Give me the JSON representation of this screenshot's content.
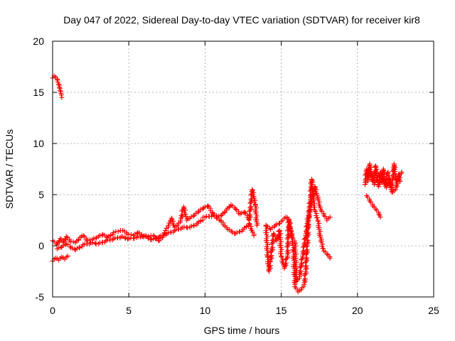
{
  "chart_data": {
    "type": "scatter",
    "title": "Day 047 of 2022, Sidereal Day-to-day VTEC variation (SDTVAR) for receiver kir8",
    "xlabel": "GPS time / hours",
    "ylabel": "SDTVAR / TECUs",
    "xlim": [
      0,
      25
    ],
    "ylim": [
      -5,
      20
    ],
    "xticks": [
      0,
      5,
      10,
      15,
      20,
      25
    ],
    "yticks": [
      -5,
      0,
      5,
      10,
      15,
      20
    ],
    "grid": true,
    "marker": "+",
    "series": [
      {
        "name": "SDTVAR",
        "color": "#ff0000",
        "segments": [
          [
            [
              0.0,
              16.4
            ],
            [
              0.1,
              16.6
            ],
            [
              0.2,
              16.5
            ],
            [
              0.3,
              16.3
            ],
            [
              0.35,
              16.0
            ],
            [
              0.4,
              15.8
            ],
            [
              0.45,
              15.5
            ],
            [
              0.5,
              15.2
            ],
            [
              0.55,
              14.9
            ],
            [
              0.6,
              14.5
            ]
          ],
          [
            [
              0.0,
              -1.5
            ],
            [
              0.2,
              -1.2
            ],
            [
              0.4,
              -1.4
            ],
            [
              0.6,
              -1.1
            ],
            [
              0.8,
              -1.3
            ],
            [
              1.0,
              -1.0
            ]
          ],
          [
            [
              0.0,
              0.5
            ],
            [
              0.3,
              0.1
            ],
            [
              0.5,
              0.7
            ],
            [
              0.7,
              0.3
            ],
            [
              0.9,
              0.9
            ],
            [
              1.2,
              0.4
            ],
            [
              1.5,
              0.3
            ],
            [
              1.8,
              0.8
            ],
            [
              2.0,
              1.0
            ],
            [
              2.3,
              0.5
            ],
            [
              2.6,
              0.6
            ],
            [
              3.0,
              0.9
            ],
            [
              3.3,
              1.1
            ],
            [
              3.6,
              0.8
            ],
            [
              4.0,
              1.3
            ],
            [
              4.3,
              1.4
            ],
            [
              4.6,
              1.5
            ],
            [
              5.0,
              1.1
            ],
            [
              5.3,
              1.0
            ],
            [
              5.6,
              1.3
            ],
            [
              6.0,
              0.9
            ],
            [
              6.3,
              0.9
            ],
            [
              6.6,
              1.0
            ],
            [
              7.0,
              0.5
            ],
            [
              7.2,
              0.8
            ],
            [
              7.4,
              1.5
            ],
            [
              7.6,
              2.0
            ],
            [
              7.8,
              2.7
            ],
            [
              8.0,
              1.8
            ],
            [
              8.2,
              2.0
            ],
            [
              8.4,
              2.5
            ],
            [
              8.6,
              3.8
            ],
            [
              8.8,
              2.5
            ],
            [
              9.0,
              2.7
            ],
            [
              9.3,
              3.0
            ],
            [
              9.6,
              3.4
            ],
            [
              9.9,
              3.7
            ],
            [
              10.2,
              3.9
            ],
            [
              10.5,
              3.2
            ],
            [
              10.8,
              2.8
            ],
            [
              11.1,
              3.0
            ],
            [
              11.4,
              3.5
            ],
            [
              11.7,
              4.0
            ],
            [
              12.0,
              3.6
            ],
            [
              12.3,
              3.1
            ],
            [
              12.6,
              3.3
            ],
            [
              12.9,
              2.5
            ],
            [
              13.1,
              5.5
            ],
            [
              13.3,
              4.0
            ],
            [
              13.4,
              2.0
            ]
          ],
          [
            [
              0.3,
              -0.3
            ],
            [
              0.6,
              -0.1
            ],
            [
              0.9,
              0.2
            ],
            [
              1.2,
              -0.2
            ],
            [
              1.5,
              -0.4
            ],
            [
              2.0,
              0.1
            ],
            [
              2.5,
              0.3
            ],
            [
              3.0,
              0.2
            ],
            [
              3.5,
              0.5
            ],
            [
              4.0,
              0.7
            ],
            [
              4.5,
              0.9
            ],
            [
              5.0,
              0.7
            ],
            [
              5.5,
              0.8
            ],
            [
              6.0,
              1.0
            ],
            [
              6.5,
              0.6
            ],
            [
              7.0,
              0.9
            ],
            [
              7.5,
              1.2
            ],
            [
              8.0,
              1.5
            ],
            [
              8.5,
              1.8
            ],
            [
              9.0,
              1.8
            ],
            [
              9.5,
              2.2
            ],
            [
              10.0,
              2.8
            ],
            [
              10.5,
              3.0
            ],
            [
              11.0,
              2.5
            ],
            [
              11.5,
              1.6
            ],
            [
              12.0,
              1.2
            ],
            [
              12.5,
              1.6
            ],
            [
              12.9,
              2.2
            ],
            [
              13.2,
              1.0
            ]
          ],
          [
            [
              14.0,
              2.0
            ],
            [
              14.1,
              -1.0
            ],
            [
              14.2,
              -2.5
            ],
            [
              14.3,
              -1.5
            ],
            [
              14.5,
              1.2
            ],
            [
              14.7,
              0.5
            ],
            [
              14.9,
              1.5
            ],
            [
              15.0,
              -1.0
            ],
            [
              15.2,
              -2.2
            ],
            [
              15.4,
              -1.0
            ],
            [
              15.5,
              2.5
            ],
            [
              15.6,
              1.5
            ],
            [
              15.7,
              1.0
            ],
            [
              15.8,
              -0.5
            ],
            [
              15.9,
              -4.0
            ],
            [
              16.1,
              -4.5
            ],
            [
              16.3,
              -4.3
            ],
            [
              16.5,
              -3.8
            ],
            [
              16.6,
              -2.5
            ],
            [
              16.7,
              0.0
            ],
            [
              16.8,
              2.5
            ],
            [
              16.9,
              4.5
            ],
            [
              17.0,
              6.5
            ],
            [
              17.1,
              4.5
            ],
            [
              17.2,
              3.5
            ],
            [
              17.4,
              2.5
            ],
            [
              17.6,
              0.5
            ],
            [
              17.8,
              -0.5
            ],
            [
              18.0,
              -0.8
            ],
            [
              18.2,
              -1.2
            ]
          ],
          [
            [
              14.0,
              2.0
            ],
            [
              14.3,
              1.6
            ],
            [
              14.6,
              2.0
            ],
            [
              14.9,
              2.2
            ],
            [
              15.1,
              2.5
            ],
            [
              15.3,
              2.8
            ],
            [
              15.5,
              2.6
            ],
            [
              15.7,
              0.8
            ],
            [
              15.9,
              0.3
            ],
            [
              16.0,
              -3.5
            ],
            [
              16.2,
              -3.0
            ],
            [
              16.4,
              -1.0
            ],
            [
              16.6,
              1.0
            ],
            [
              16.8,
              3.0
            ],
            [
              17.0,
              4.5
            ],
            [
              17.2,
              5.8
            ],
            [
              17.4,
              4.6
            ],
            [
              17.6,
              3.5
            ],
            [
              17.8,
              3.0
            ],
            [
              18.0,
              2.5
            ],
            [
              18.2,
              2.8
            ]
          ],
          [
            [
              20.5,
              6.0
            ],
            [
              20.6,
              7.5
            ],
            [
              20.7,
              6.5
            ],
            [
              20.8,
              8.0
            ],
            [
              20.9,
              7.0
            ],
            [
              21.0,
              6.3
            ],
            [
              21.1,
              6.8
            ],
            [
              21.2,
              7.8
            ],
            [
              21.3,
              6.5
            ],
            [
              21.4,
              5.8
            ],
            [
              21.5,
              7.0
            ],
            [
              21.6,
              6.2
            ],
            [
              21.7,
              7.5
            ],
            [
              21.8,
              6.0
            ],
            [
              21.9,
              6.8
            ],
            [
              22.0,
              7.2
            ],
            [
              22.1,
              6.0
            ],
            [
              22.2,
              5.5
            ],
            [
              22.3,
              6.4
            ],
            [
              22.4,
              8.0
            ],
            [
              22.5,
              6.5
            ],
            [
              22.6,
              6.2
            ],
            [
              22.7,
              7.0
            ],
            [
              22.8,
              6.3
            ]
          ],
          [
            [
              20.5,
              6.0
            ],
            [
              20.7,
              6.5
            ],
            [
              20.9,
              7.2
            ],
            [
              21.1,
              6.0
            ],
            [
              21.3,
              6.7
            ],
            [
              21.5,
              7.2
            ],
            [
              21.7,
              6.4
            ],
            [
              21.9,
              5.7
            ],
            [
              22.1,
              6.6
            ],
            [
              22.3,
              5.2
            ],
            [
              22.5,
              5.5
            ],
            [
              22.7,
              6.8
            ],
            [
              22.9,
              7.2
            ]
          ],
          [
            [
              20.6,
              4.9
            ],
            [
              20.8,
              4.4
            ],
            [
              21.0,
              3.9
            ],
            [
              21.2,
              3.6
            ],
            [
              21.4,
              3.1
            ],
            [
              21.5,
              2.8
            ]
          ]
        ]
      }
    ]
  }
}
